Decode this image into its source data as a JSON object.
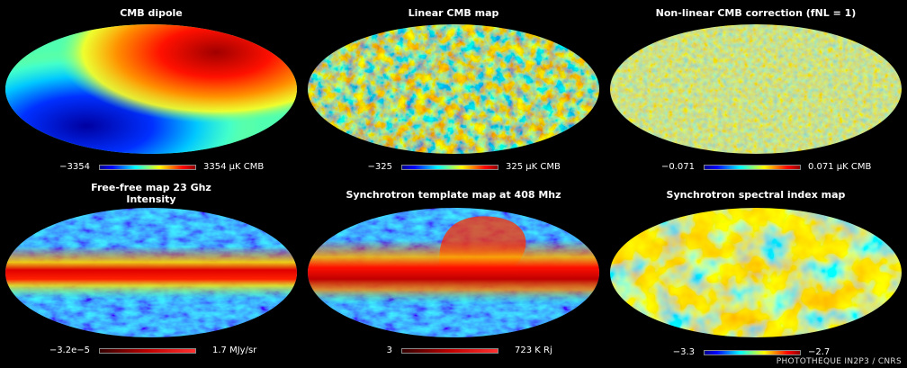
{
  "panels": [
    {
      "title": "CMB dipole",
      "subtitle": "",
      "min": "−3354",
      "max": "3354 µK CMB",
      "colorbar": "jet"
    },
    {
      "title": "Linear CMB map",
      "subtitle": "",
      "min": "−325",
      "max": "325 µK CMB",
      "colorbar": "jet"
    },
    {
      "title": "Non-linear CMB correction (fNL = 1)",
      "subtitle": "",
      "min": "−0.071",
      "max": "0.071 µK CMB",
      "colorbar": "jet"
    },
    {
      "title": "Free-free map 23 Ghz",
      "subtitle": "Intensity",
      "min": "−3.2e−5",
      "max": "1.7 MJy/sr",
      "colorbar": "red"
    },
    {
      "title": "Synchrotron template map at 408 Mhz",
      "subtitle": "",
      "min": "3",
      "max": "723 K Rj",
      "colorbar": "red"
    },
    {
      "title": "Synchrotron spectral index map",
      "subtitle": "",
      "min": "−3.3",
      "max": "−2.7",
      "colorbar": "jet"
    }
  ],
  "credit": "PHOTOTHEQUE IN2P3 / CNRS",
  "colors": {
    "background": "#000000",
    "jet_low": "#00008f",
    "jet_mid": "#7fff7f",
    "jet_high": "#8f0000"
  }
}
